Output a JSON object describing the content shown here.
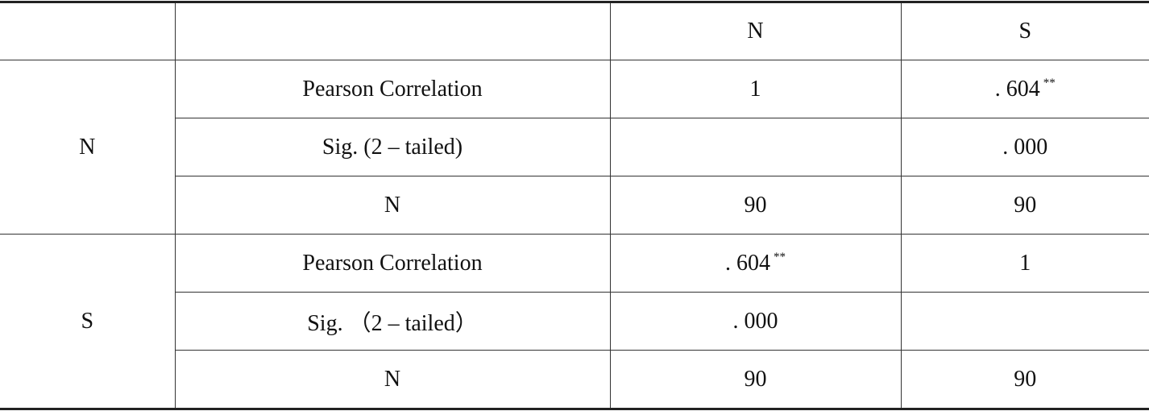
{
  "table": {
    "header": [
      null,
      null,
      "N",
      "S"
    ],
    "groups": [
      {
        "label": "N",
        "rows": [
          {
            "label": "Pearson Correlation",
            "cells": [
              {
                "text": "1"
              },
              {
                "text": ". 604",
                "mark": "**"
              }
            ]
          },
          {
            "label": "Sig. (2 – tailed)",
            "cells": [
              null,
              {
                "text": ". 000"
              }
            ]
          },
          {
            "label": "N",
            "cells": [
              {
                "text": "90"
              },
              {
                "text": "90"
              }
            ]
          }
        ]
      },
      {
        "label": "S",
        "rows": [
          {
            "label": "Pearson Correlation",
            "cells": [
              {
                "text": ". 604",
                "mark": "**"
              },
              {
                "text": "1"
              }
            ]
          },
          {
            "label": "Sig. （2 – tailed）",
            "cells": [
              {
                "text": ". 000"
              },
              null
            ]
          },
          {
            "label": "N",
            "cells": [
              {
                "text": "90"
              },
              {
                "text": "90"
              }
            ]
          }
        ]
      }
    ]
  }
}
